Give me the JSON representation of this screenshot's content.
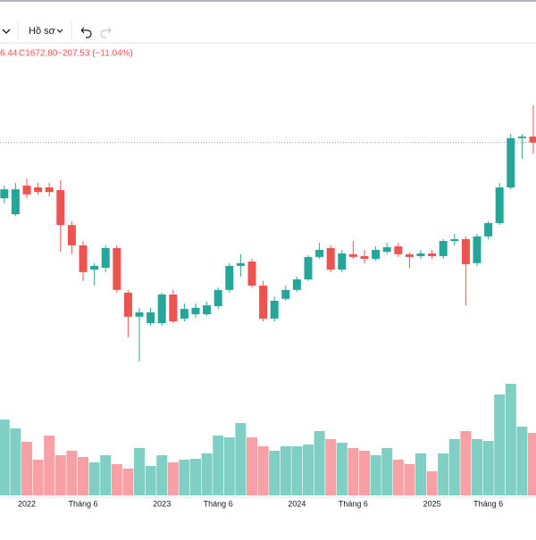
{
  "toolbar": {
    "profile": "Hồ sơ"
  },
  "legend": {
    "partial": "6.44",
    "close": "C1672.80",
    "change": "−207.53 (−11.04%)"
  },
  "chart_data": {
    "type": "candlestick",
    "categories": [
      null,
      null,
      "2022",
      null,
      null,
      null,
      null,
      "Tháng 6",
      null,
      null,
      null,
      null,
      null,
      null,
      "2023",
      null,
      null,
      null,
      null,
      "Tháng 6",
      null,
      null,
      null,
      null,
      null,
      null,
      "2024",
      null,
      null,
      null,
      null,
      "Tháng 6",
      null,
      null,
      null,
      null,
      null,
      null,
      "2025",
      null,
      null,
      null,
      null,
      "Tháng 6",
      null,
      null,
      null,
      null
    ],
    "open": [
      1467,
      1408,
      1514,
      1507,
      1507,
      1497,
      1368,
      1293,
      1203,
      1210,
      1283,
      1118,
      1029,
      1005,
      1005,
      1111,
      1022,
      1038,
      1038,
      1068,
      1128,
      1217,
      1233,
      1144,
      1022,
      1095,
      1128,
      1167,
      1250,
      1283,
      1203,
      1260,
      1253,
      1243,
      1269,
      1289,
      1260,
      1253,
      1263,
      1253,
      1309,
      1316,
      1227,
      1326,
      1375,
      1507,
      1689,
      1695
    ],
    "high": [
      1514,
      1524,
      1540,
      1524,
      1524,
      1533,
      1382,
      1309,
      1227,
      1293,
      1293,
      1128,
      1062,
      1062,
      1118,
      1128,
      1078,
      1078,
      1085,
      1137,
      1227,
      1260,
      1243,
      1161,
      1104,
      1144,
      1177,
      1256,
      1302,
      1293,
      1276,
      1309,
      1276,
      1289,
      1302,
      1302,
      1266,
      1276,
      1276,
      1316,
      1335,
      1326,
      1335,
      1382,
      1524,
      1705,
      1705,
      1811
    ],
    "low": [
      1448,
      1401,
      1467,
      1481,
      1474,
      1269,
      1260,
      1161,
      1144,
      1194,
      1118,
      953,
      864,
      996,
      996,
      1005,
      1012,
      1025,
      1032,
      1058,
      1118,
      1177,
      1137,
      1012,
      1012,
      1088,
      1121,
      1161,
      1243,
      1194,
      1194,
      1243,
      1227,
      1236,
      1260,
      1250,
      1210,
      1243,
      1243,
      1243,
      1293,
      1071,
      1217,
      1316,
      1368,
      1500,
      1613,
      1633
    ],
    "close": [
      1500,
      1500,
      1481,
      1490,
      1490,
      1368,
      1293,
      1194,
      1217,
      1283,
      1128,
      1029,
      1045,
      1045,
      1111,
      1012,
      1058,
      1062,
      1071,
      1128,
      1217,
      1227,
      1144,
      1022,
      1088,
      1128,
      1167,
      1250,
      1276,
      1203,
      1263,
      1250,
      1243,
      1276,
      1286,
      1260,
      1250,
      1263,
      1253,
      1309,
      1316,
      1223,
      1326,
      1375,
      1507,
      1689,
      1695,
      1672.8
    ],
    "ylim": [
      781,
      2035
    ],
    "up_color": "#26a69a",
    "down_color": "#ef5350",
    "last_price": 1672.8,
    "volume": {
      "values": [
        85,
        75,
        60,
        40,
        67,
        45,
        50,
        43,
        37,
        45,
        35,
        30,
        53,
        33,
        45,
        37,
        40,
        41,
        47,
        67,
        65,
        81,
        65,
        55,
        50,
        55,
        55,
        57,
        72,
        63,
        59,
        53,
        50,
        45,
        53,
        40,
        35,
        47,
        27,
        47,
        63,
        72,
        63,
        61,
        113,
        125,
        77,
        70
      ],
      "ylim": [
        0,
        130
      ],
      "up_color": "#7fcfc4",
      "down_color": "#f7a1a6"
    }
  }
}
